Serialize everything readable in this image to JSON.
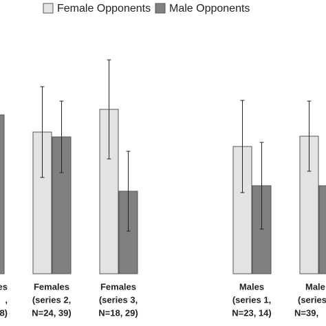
{
  "chart_data": {
    "type": "bar",
    "categories": [
      [
        "es",
        ",",
        "8)"
      ],
      [
        "Females",
        "(series 2,",
        "N=24, 39)"
      ],
      [
        "Females",
        "(series 3,",
        "N=18, 29)"
      ],
      null,
      [
        "Males",
        "(series 1,",
        "N=23, 14)"
      ],
      [
        "Male",
        "(series",
        "N=39,"
      ]
    ],
    "series": [
      {
        "name": "Female Opponents",
        "color": "#e3e3e3",
        "values": [
          null,
          206,
          239,
          null,
          185,
          200
        ],
        "errors": [
          null,
          66,
          72,
          null,
          67,
          51
        ]
      },
      {
        "name": "Male Opponents",
        "color": "#808080",
        "values": [
          231,
          199,
          120,
          null,
          128,
          128
        ],
        "errors": [
          null,
          52,
          58,
          null,
          63,
          null
        ]
      }
    ],
    "ylim": [
      0,
      400
    ],
    "legend": "top"
  }
}
